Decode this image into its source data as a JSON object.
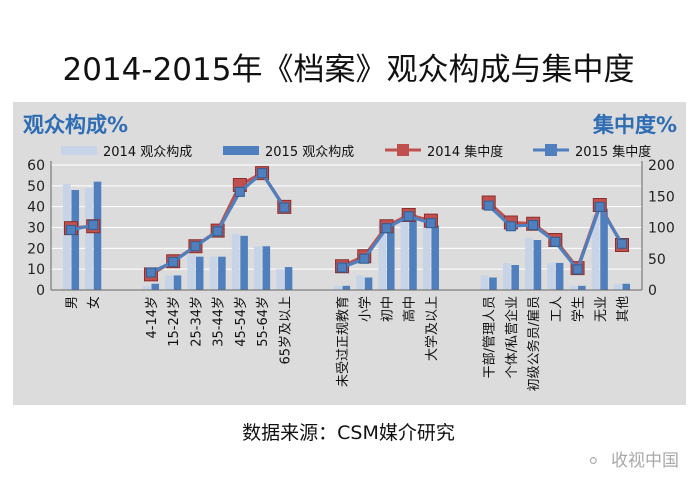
{
  "headline": "2014-2015年《档案》观众构成与集中度",
  "source": "数据来源：CSM媒介研究",
  "watermark": {
    "text": "收视中国",
    "icon": "wechat-icon"
  },
  "colors": {
    "panel": "#dcdcdc",
    "bar2014": "#c7d3e6",
    "bar2015": "#4f7fbd",
    "line2014": "#c0504d",
    "line2015": "#4f7fbd",
    "accent": "#2e6db4"
  },
  "chart_data": {
    "type": "bar",
    "left_title": "观众构成%",
    "right_title": "集中度%",
    "ylim": [
      0,
      60
    ],
    "yticks": [
      0,
      10,
      20,
      30,
      40,
      50,
      60
    ],
    "y2lim": [
      0,
      200
    ],
    "y2ticks": [
      0,
      50,
      100,
      150,
      200
    ],
    "legend": [
      {
        "label": "2014 观众构成",
        "kind": "bar",
        "series": "bar2014"
      },
      {
        "label": "2015 观众构成",
        "kind": "bar",
        "series": "bar2015"
      },
      {
        "label": "2014 集中度",
        "kind": "line",
        "series": "line2014"
      },
      {
        "label": "2015 集中度",
        "kind": "line",
        "series": "line2015"
      }
    ],
    "groups": [
      {
        "categories": [
          "男",
          "女"
        ],
        "composition_2014": [
          51,
          49
        ],
        "composition_2015": [
          48,
          52
        ],
        "concentration_2014": [
          99,
          102
        ],
        "concentration_2015": [
          96,
          104
        ]
      },
      {
        "categories": [
          "4-14岁",
          "15-24岁",
          "25-34岁",
          "35-44岁",
          "45-54岁",
          "55-64岁",
          "65岁及以上"
        ],
        "composition_2014": [
          2,
          7,
          17,
          16,
          27,
          21,
          10
        ],
        "composition_2015": [
          3,
          7,
          16,
          16,
          26,
          21,
          11
        ],
        "concentration_2014": [
          25,
          46,
          70,
          95,
          168,
          187,
          133
        ],
        "concentration_2015": [
          28,
          45,
          70,
          94,
          157,
          187,
          132
        ]
      },
      {
        "categories": [
          "未受过正规教育",
          "小学",
          "初中",
          "高中",
          "大学及以上"
        ],
        "composition_2014": [
          2,
          7,
          33,
          37,
          33
        ],
        "composition_2015": [
          2,
          6,
          32,
          36,
          31
        ],
        "concentration_2014": [
          38,
          54,
          102,
          120,
          111
        ],
        "concentration_2015": [
          36,
          50,
          99,
          118,
          107
        ]
      },
      {
        "categories": [
          "干部/管理人员",
          "个体/私营企业",
          "初级公务员/雇员",
          "工人",
          "学生",
          "无业",
          "其他"
        ],
        "composition_2014": [
          7,
          13,
          25,
          13,
          2,
          36,
          3
        ],
        "composition_2015": [
          6,
          12,
          24,
          13,
          2,
          39,
          3
        ],
        "concentration_2014": [
          140,
          108,
          106,
          80,
          35,
          136,
          72
        ],
        "concentration_2015": [
          135,
          102,
          104,
          77,
          33,
          133,
          74
        ]
      }
    ]
  }
}
